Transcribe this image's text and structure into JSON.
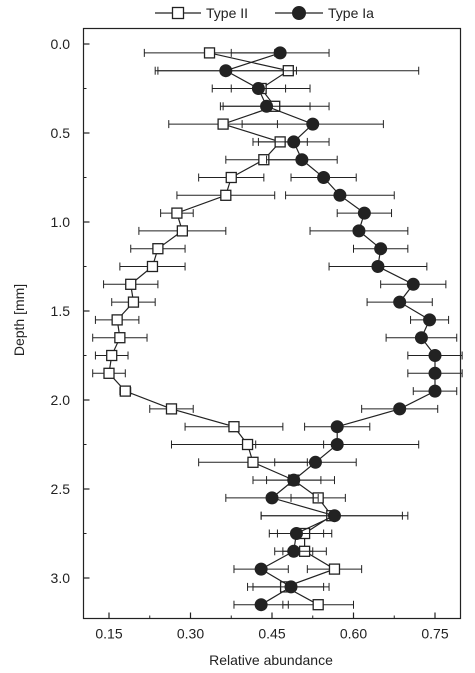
{
  "chart_data": {
    "type": "scatter",
    "xlabel": "Relative abundance",
    "ylabel": "Depth [mm]",
    "xlim": [
      0.15,
      0.75
    ],
    "ylim": [
      0.0,
      3.0
    ],
    "x_ticks": [
      "0.15",
      "0.30",
      "0.45",
      "0.60",
      "0.75"
    ],
    "y_ticks": [
      "0.0",
      "0.5",
      "1.0",
      "1.5",
      "2.0",
      "2.5",
      "3.0"
    ],
    "legend": {
      "placement": "top",
      "entries": [
        "Type II",
        "Type Ia"
      ]
    },
    "grid": false,
    "series": [
      {
        "name": "Type II",
        "marker": "open-square",
        "color": "#222222",
        "points": [
          {
            "depth": 0.05,
            "value": 0.335,
            "err": 0.12
          },
          {
            "depth": 0.15,
            "value": 0.48,
            "err": 0.24
          },
          {
            "depth": 0.25,
            "value": 0.43,
            "err": 0.09
          },
          {
            "depth": 0.35,
            "value": 0.455,
            "err": 0.1
          },
          {
            "depth": 0.45,
            "value": 0.36,
            "err": 0.1
          },
          {
            "depth": 0.55,
            "value": 0.465,
            "err": 0.05
          },
          {
            "depth": 0.65,
            "value": 0.435,
            "err": 0.07
          },
          {
            "depth": 0.75,
            "value": 0.375,
            "err": 0.06
          },
          {
            "depth": 0.85,
            "value": 0.365,
            "err": 0.09
          },
          {
            "depth": 0.95,
            "value": 0.275,
            "err": 0.03
          },
          {
            "depth": 1.05,
            "value": 0.285,
            "err": 0.08
          },
          {
            "depth": 1.15,
            "value": 0.24,
            "err": 0.05
          },
          {
            "depth": 1.25,
            "value": 0.23,
            "err": 0.06
          },
          {
            "depth": 1.35,
            "value": 0.19,
            "err": 0.05
          },
          {
            "depth": 1.45,
            "value": 0.195,
            "err": 0.04
          },
          {
            "depth": 1.55,
            "value": 0.165,
            "err": 0.04
          },
          {
            "depth": 1.65,
            "value": 0.17,
            "err": 0.05
          },
          {
            "depth": 1.75,
            "value": 0.155,
            "err": 0.03
          },
          {
            "depth": 1.85,
            "value": 0.15,
            "err": 0.03
          },
          {
            "depth": 1.95,
            "value": 0.18,
            "err": 0.01
          },
          {
            "depth": 2.05,
            "value": 0.265,
            "err": 0.04
          },
          {
            "depth": 2.15,
            "value": 0.38,
            "err": 0.09
          },
          {
            "depth": 2.25,
            "value": 0.405,
            "err": 0.14
          },
          {
            "depth": 2.35,
            "value": 0.415,
            "err": 0.1
          },
          {
            "depth": 2.45,
            "value": 0.49,
            "err": 0.05
          },
          {
            "depth": 2.55,
            "value": 0.535,
            "err": 0.05
          },
          {
            "depth": 2.65,
            "value": 0.56,
            "err": 0.13
          },
          {
            "depth": 2.75,
            "value": 0.51,
            "err": 0.05
          },
          {
            "depth": 2.85,
            "value": 0.51,
            "err": 0.04
          },
          {
            "depth": 2.95,
            "value": 0.565,
            "err": 0.05
          },
          {
            "depth": 3.05,
            "value": 0.475,
            "err": 0.07
          },
          {
            "depth": 3.15,
            "value": 0.535,
            "err": 0.065
          }
        ]
      },
      {
        "name": "Type Ia",
        "marker": "filled-circle",
        "color": "#222222",
        "points": [
          {
            "depth": 0.05,
            "value": 0.465,
            "err": 0.09
          },
          {
            "depth": 0.15,
            "value": 0.365,
            "err": 0.13
          },
          {
            "depth": 0.25,
            "value": 0.425,
            "err": 0.05
          },
          {
            "depth": 0.35,
            "value": 0.44,
            "err": 0.08
          },
          {
            "depth": 0.45,
            "value": 0.525,
            "err": 0.13
          },
          {
            "depth": 0.55,
            "value": 0.49,
            "err": 0.065
          },
          {
            "depth": 0.65,
            "value": 0.505,
            "err": 0.065
          },
          {
            "depth": 0.75,
            "value": 0.545,
            "err": 0.06
          },
          {
            "depth": 0.85,
            "value": 0.575,
            "err": 0.1
          },
          {
            "depth": 0.95,
            "value": 0.62,
            "err": 0.05
          },
          {
            "depth": 1.05,
            "value": 0.61,
            "err": 0.09
          },
          {
            "depth": 1.15,
            "value": 0.65,
            "err": 0.05
          },
          {
            "depth": 1.25,
            "value": 0.645,
            "err": 0.09
          },
          {
            "depth": 1.35,
            "value": 0.71,
            "err": 0.06
          },
          {
            "depth": 1.45,
            "value": 0.685,
            "err": 0.06
          },
          {
            "depth": 1.55,
            "value": 0.74,
            "err": 0.035
          },
          {
            "depth": 1.65,
            "value": 0.725,
            "err": 0.065
          },
          {
            "depth": 1.75,
            "value": 0.75,
            "err": 0.05
          },
          {
            "depth": 1.85,
            "value": 0.75,
            "err": 0.05
          },
          {
            "depth": 1.95,
            "value": 0.75,
            "err": 0.04
          },
          {
            "depth": 2.05,
            "value": 0.685,
            "err": 0.07
          },
          {
            "depth": 2.15,
            "value": 0.57,
            "err": 0.06
          },
          {
            "depth": 2.25,
            "value": 0.57,
            "err": 0.15
          },
          {
            "depth": 2.35,
            "value": 0.53,
            "err": 0.075
          },
          {
            "depth": 2.45,
            "value": 0.49,
            "err": 0.075
          },
          {
            "depth": 2.55,
            "value": 0.45,
            "err": 0.085
          },
          {
            "depth": 2.65,
            "value": 0.565,
            "err": 0.135
          },
          {
            "depth": 2.75,
            "value": 0.495,
            "err": 0.05
          },
          {
            "depth": 2.85,
            "value": 0.49,
            "err": 0.035
          },
          {
            "depth": 2.95,
            "value": 0.43,
            "err": 0.05
          },
          {
            "depth": 3.05,
            "value": 0.485,
            "err": 0.07
          },
          {
            "depth": 3.15,
            "value": 0.43,
            "err": 0.05
          }
        ]
      }
    ]
  }
}
